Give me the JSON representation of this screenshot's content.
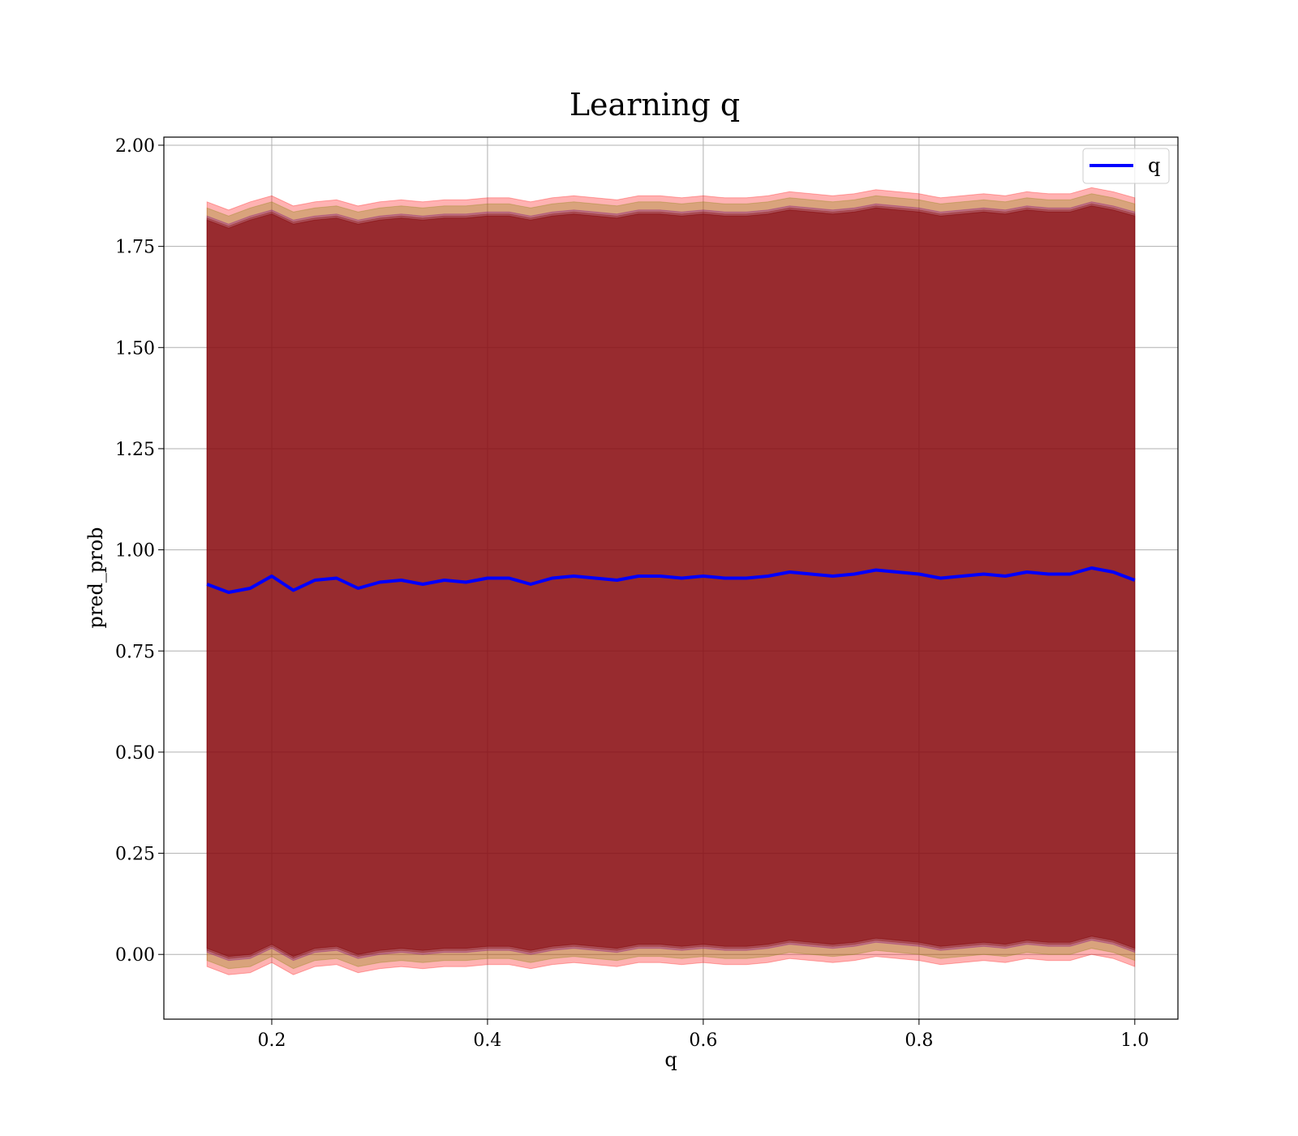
{
  "chart_data": {
    "type": "line",
    "title": "Learning q",
    "xlabel": "q",
    "ylabel": "pred_prob",
    "xlim": [
      0.1,
      1.04
    ],
    "ylim": [
      -0.16,
      2.02
    ],
    "x_ticks": [
      "0.2",
      "0.4",
      "0.6",
      "0.8",
      "1.0"
    ],
    "y_ticks": [
      "0.00",
      "0.25",
      "0.50",
      "0.75",
      "1.00",
      "1.25",
      "1.50",
      "1.75",
      "2.00"
    ],
    "grid": true,
    "legend_position": "top-right",
    "series": [
      {
        "name": "q",
        "color": "#0000ff",
        "x": [
          0.14,
          0.16,
          0.18,
          0.2,
          0.22,
          0.24,
          0.26,
          0.28,
          0.3,
          0.32,
          0.34,
          0.36,
          0.38,
          0.4,
          0.42,
          0.44,
          0.46,
          0.48,
          0.5,
          0.52,
          0.54,
          0.56,
          0.58,
          0.6,
          0.62,
          0.64,
          0.66,
          0.68,
          0.7,
          0.72,
          0.74,
          0.76,
          0.78,
          0.8,
          0.82,
          0.84,
          0.86,
          0.88,
          0.9,
          0.92,
          0.94,
          0.96,
          0.98,
          1.0
        ],
        "y": [
          0.915,
          0.895,
          0.905,
          0.935,
          0.9,
          0.925,
          0.93,
          0.905,
          0.92,
          0.925,
          0.915,
          0.925,
          0.92,
          0.93,
          0.93,
          0.915,
          0.93,
          0.935,
          0.93,
          0.925,
          0.935,
          0.935,
          0.93,
          0.935,
          0.93,
          0.93,
          0.935,
          0.945,
          0.94,
          0.935,
          0.94,
          0.95,
          0.945,
          0.94,
          0.93,
          0.935,
          0.94,
          0.935,
          0.945,
          0.94,
          0.94,
          0.955,
          0.945,
          0.925
        ]
      }
    ],
    "bands": [
      {
        "color": "#ff0000",
        "opacity": 0.3,
        "upper": [
          1.86,
          1.84,
          1.86,
          1.875,
          1.85,
          1.86,
          1.865,
          1.85,
          1.86,
          1.865,
          1.86,
          1.865,
          1.865,
          1.87,
          1.87,
          1.86,
          1.87,
          1.875,
          1.87,
          1.865,
          1.875,
          1.875,
          1.87,
          1.875,
          1.87,
          1.87,
          1.875,
          1.885,
          1.88,
          1.875,
          1.88,
          1.89,
          1.885,
          1.88,
          1.87,
          1.875,
          1.88,
          1.875,
          1.885,
          1.88,
          1.88,
          1.895,
          1.885,
          1.87
        ],
        "lower": [
          -0.03,
          -0.05,
          -0.045,
          -0.02,
          -0.05,
          -0.03,
          -0.025,
          -0.045,
          -0.035,
          -0.03,
          -0.035,
          -0.03,
          -0.03,
          -0.025,
          -0.025,
          -0.035,
          -0.025,
          -0.02,
          -0.025,
          -0.03,
          -0.02,
          -0.02,
          -0.025,
          -0.02,
          -0.025,
          -0.025,
          -0.02,
          -0.01,
          -0.015,
          -0.02,
          -0.015,
          -0.005,
          -0.01,
          -0.015,
          -0.025,
          -0.02,
          -0.015,
          -0.02,
          -0.01,
          -0.015,
          -0.015,
          0.0,
          -0.01,
          -0.03
        ]
      },
      {
        "color": "#808000",
        "opacity": 0.3,
        "upper": [
          1.845,
          1.825,
          1.845,
          1.86,
          1.835,
          1.845,
          1.85,
          1.835,
          1.845,
          1.85,
          1.845,
          1.85,
          1.85,
          1.855,
          1.855,
          1.845,
          1.855,
          1.86,
          1.855,
          1.85,
          1.86,
          1.86,
          1.855,
          1.86,
          1.855,
          1.855,
          1.86,
          1.87,
          1.865,
          1.86,
          1.865,
          1.875,
          1.87,
          1.865,
          1.855,
          1.86,
          1.865,
          1.86,
          1.87,
          1.865,
          1.865,
          1.88,
          1.87,
          1.855
        ],
        "lower": [
          -0.015,
          -0.035,
          -0.03,
          -0.005,
          -0.035,
          -0.015,
          -0.01,
          -0.03,
          -0.02,
          -0.015,
          -0.02,
          -0.015,
          -0.015,
          -0.01,
          -0.01,
          -0.02,
          -0.01,
          -0.005,
          -0.01,
          -0.015,
          -0.005,
          -0.005,
          -0.01,
          -0.005,
          -0.01,
          -0.01,
          -0.005,
          0.005,
          0.0,
          -0.005,
          0.0,
          0.01,
          0.005,
          0.0,
          -0.01,
          -0.005,
          0.0,
          -0.005,
          0.005,
          0.0,
          0.0,
          0.015,
          0.005,
          -0.015
        ]
      },
      {
        "color": "#800080",
        "opacity": 0.3,
        "upper": [
          1.825,
          1.805,
          1.825,
          1.84,
          1.815,
          1.825,
          1.83,
          1.815,
          1.825,
          1.83,
          1.825,
          1.83,
          1.83,
          1.835,
          1.835,
          1.825,
          1.835,
          1.84,
          1.835,
          1.83,
          1.84,
          1.84,
          1.835,
          1.84,
          1.835,
          1.835,
          1.84,
          1.85,
          1.845,
          1.84,
          1.845,
          1.855,
          1.85,
          1.845,
          1.835,
          1.84,
          1.845,
          1.84,
          1.85,
          1.845,
          1.845,
          1.86,
          1.85,
          1.835
        ],
        "lower": [
          0.005,
          -0.015,
          -0.01,
          0.015,
          -0.015,
          0.005,
          0.01,
          -0.01,
          0.0,
          0.005,
          0.0,
          0.005,
          0.005,
          0.01,
          0.01,
          0.0,
          0.01,
          0.015,
          0.01,
          0.005,
          0.015,
          0.015,
          0.01,
          0.015,
          0.01,
          0.01,
          0.015,
          0.025,
          0.02,
          0.015,
          0.02,
          0.03,
          0.025,
          0.02,
          0.01,
          0.015,
          0.02,
          0.015,
          0.025,
          0.02,
          0.02,
          0.035,
          0.025,
          0.005
        ]
      },
      {
        "color": "#800000",
        "opacity": 0.3,
        "upper": [
          1.82,
          1.8,
          1.82,
          1.835,
          1.81,
          1.82,
          1.825,
          1.81,
          1.82,
          1.825,
          1.82,
          1.825,
          1.825,
          1.83,
          1.83,
          1.82,
          1.83,
          1.835,
          1.83,
          1.825,
          1.835,
          1.835,
          1.83,
          1.835,
          1.83,
          1.83,
          1.835,
          1.845,
          1.84,
          1.835,
          1.84,
          1.85,
          1.845,
          1.84,
          1.83,
          1.835,
          1.84,
          1.835,
          1.845,
          1.84,
          1.84,
          1.855,
          1.845,
          1.83
        ],
        "lower": [
          0.01,
          -0.01,
          -0.005,
          0.02,
          -0.01,
          0.01,
          0.015,
          -0.005,
          0.005,
          0.01,
          0.005,
          0.01,
          0.01,
          0.015,
          0.015,
          0.005,
          0.015,
          0.02,
          0.015,
          0.01,
          0.02,
          0.02,
          0.015,
          0.02,
          0.015,
          0.015,
          0.02,
          0.03,
          0.025,
          0.02,
          0.025,
          0.035,
          0.03,
          0.025,
          0.015,
          0.02,
          0.025,
          0.02,
          0.03,
          0.025,
          0.025,
          0.04,
          0.03,
          0.01
        ]
      },
      {
        "color": "#800000",
        "opacity": 0.45,
        "upper": [
          1.815,
          1.795,
          1.815,
          1.83,
          1.805,
          1.815,
          1.82,
          1.805,
          1.815,
          1.82,
          1.815,
          1.82,
          1.82,
          1.825,
          1.825,
          1.815,
          1.825,
          1.83,
          1.825,
          1.82,
          1.83,
          1.83,
          1.825,
          1.83,
          1.825,
          1.825,
          1.83,
          1.84,
          1.835,
          1.83,
          1.835,
          1.845,
          1.84,
          1.835,
          1.825,
          1.83,
          1.835,
          1.83,
          1.84,
          1.835,
          1.835,
          1.85,
          1.84,
          1.825
        ],
        "lower": [
          0.015,
          -0.005,
          0.0,
          0.025,
          -0.005,
          0.015,
          0.02,
          0.0,
          0.01,
          0.015,
          0.01,
          0.015,
          0.015,
          0.02,
          0.02,
          0.01,
          0.02,
          0.025,
          0.02,
          0.015,
          0.025,
          0.025,
          0.02,
          0.025,
          0.02,
          0.02,
          0.025,
          0.035,
          0.03,
          0.025,
          0.03,
          0.04,
          0.035,
          0.03,
          0.02,
          0.025,
          0.03,
          0.025,
          0.035,
          0.03,
          0.03,
          0.045,
          0.035,
          0.015
        ]
      }
    ]
  }
}
